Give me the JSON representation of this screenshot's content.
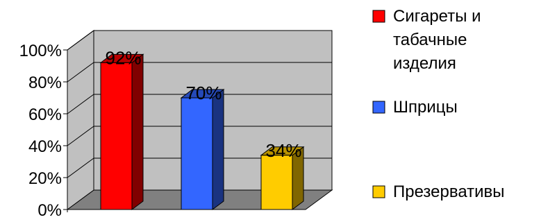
{
  "chart_data": {
    "type": "bar",
    "categories": [
      "Сигареты и табачные изделия",
      "Шприцы",
      "Презервативы"
    ],
    "values": [
      92,
      70,
      34
    ],
    "data_labels": [
      "92%",
      "70%",
      "34%"
    ],
    "colors": [
      "#ff0000",
      "#3366ff",
      "#ffcc00"
    ],
    "ylim": [
      0,
      100
    ],
    "yticks": [
      0,
      20,
      40,
      60,
      80,
      100
    ],
    "ytick_labels": [
      "0%",
      "20%",
      "40%",
      "60%",
      "80%",
      "100%"
    ],
    "grid": true,
    "style": "3d",
    "legend_position": "right",
    "legend": [
      {
        "lines": [
          "Сигареты и",
          "табачные",
          "изделия"
        ],
        "color": "#ff0000"
      },
      {
        "lines": [
          "Шприцы"
        ],
        "color": "#3366ff"
      },
      {
        "lines": [
          "Презервативы"
        ],
        "color": "#ffcc00"
      }
    ]
  }
}
